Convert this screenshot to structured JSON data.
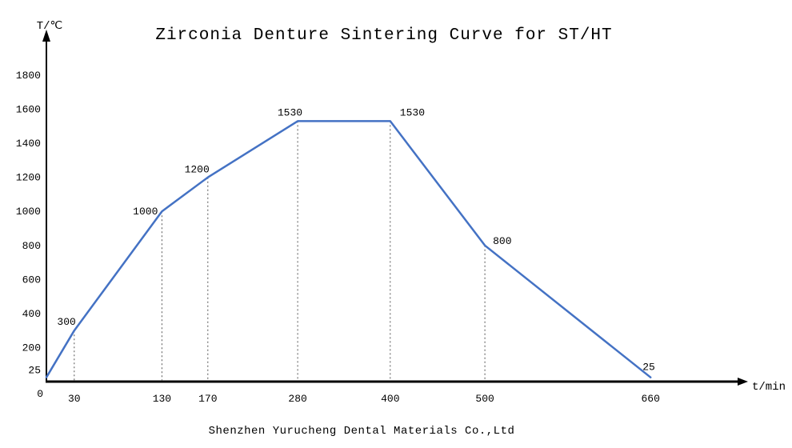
{
  "page": {
    "footer": "Shenzhen Yurucheng Dental Materials Co.,Ltd"
  },
  "chart_data": {
    "type": "line",
    "title": "Zirconia Denture Sintering Curve for ST/HT",
    "xlabel": "t/min",
    "ylabel": "T/℃",
    "points": [
      {
        "t": 0,
        "temp": 25,
        "label": ""
      },
      {
        "t": 30,
        "temp": 300,
        "label": "300"
      },
      {
        "t": 130,
        "temp": 1000,
        "label": "1000"
      },
      {
        "t": 170,
        "temp": 1200,
        "label": "1200"
      },
      {
        "t": 280,
        "temp": 1530,
        "label": "1530"
      },
      {
        "t": 400,
        "temp": 1530,
        "label": "1530"
      },
      {
        "t": 500,
        "temp": 800,
        "label": "800"
      },
      {
        "t": 660,
        "temp": 25,
        "label": "25"
      }
    ],
    "x_ticks": [
      30,
      130,
      170,
      280,
      400,
      500,
      660
    ],
    "y_ticks": [
      25,
      200,
      400,
      600,
      800,
      1000,
      1200,
      1400,
      1600,
      1800
    ],
    "origin_label": "0",
    "droplines_at": [
      30,
      130,
      170,
      280,
      400,
      500
    ],
    "ylim": [
      0,
      1900
    ],
    "xlim": [
      0,
      750
    ],
    "grid": false,
    "legend": "none",
    "line_color": "#4472C4",
    "axis_color": "#000000",
    "dropline_color": "#555555"
  }
}
